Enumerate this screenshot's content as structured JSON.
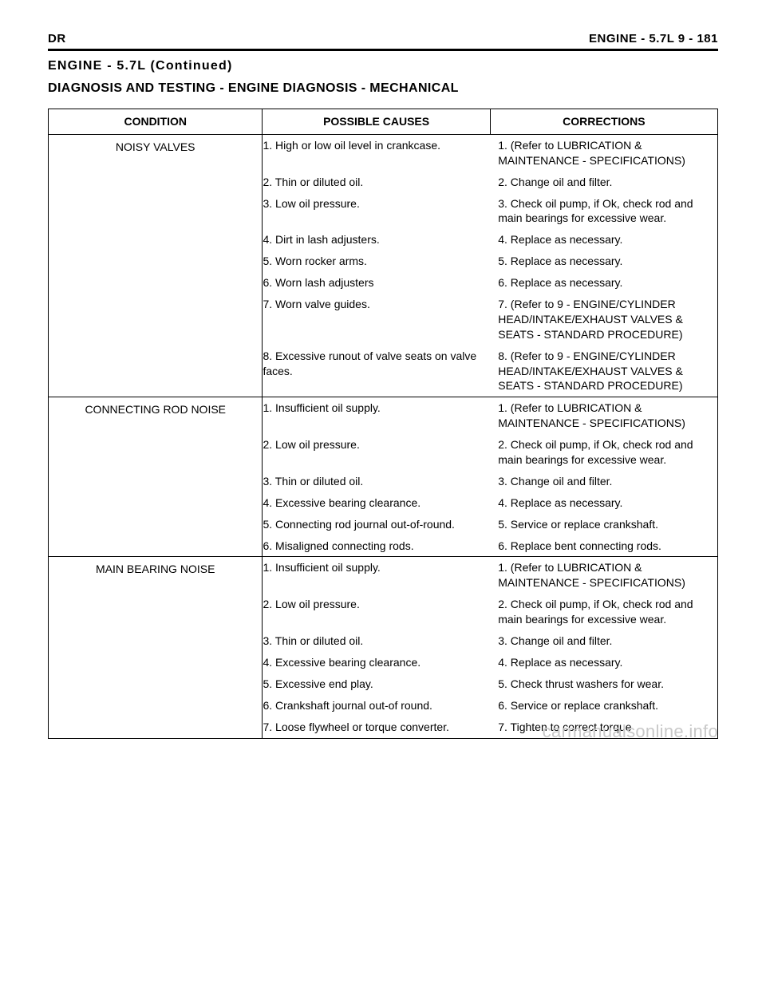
{
  "header": {
    "left": "DR",
    "right_section": "ENGINE - 5.7L",
    "right_page": "9 - 181"
  },
  "continued": "ENGINE - 5.7L (Continued)",
  "title": "DIAGNOSIS AND TESTING - ENGINE DIAGNOSIS - MECHANICAL",
  "columns": {
    "condition": "CONDITION",
    "causes": "POSSIBLE CAUSES",
    "corrections": "CORRECTIONS"
  },
  "rows": [
    {
      "condition": "NOISY VALVES",
      "pairs": [
        {
          "cause": "1. High or low oil level in crankcase.",
          "correction": "1. (Refer to LUBRICATION & MAINTENANCE - SPECIFICATIONS)"
        },
        {
          "cause": "2. Thin or diluted oil.",
          "correction": "2. Change oil and filter."
        },
        {
          "cause": "3. Low oil pressure.",
          "correction": "3. Check oil pump, if Ok, check rod and main bearings for excessive wear."
        },
        {
          "cause": "4. Dirt in lash adjusters.",
          "correction": "4. Replace as necessary."
        },
        {
          "cause": "5. Worn rocker arms.",
          "correction": "5. Replace as necessary."
        },
        {
          "cause": "6. Worn lash adjusters",
          "correction": "6. Replace as necessary."
        },
        {
          "cause": "7. Worn valve guides.",
          "correction": "7. (Refer to 9 - ENGINE/CYLINDER HEAD/INTAKE/EXHAUST VALVES & SEATS - STANDARD PROCEDURE)"
        },
        {
          "cause": "8. Excessive runout of valve seats on valve faces.",
          "correction": "8. (Refer to 9 - ENGINE/CYLINDER HEAD/INTAKE/EXHAUST VALVES & SEATS - STANDARD PROCEDURE)"
        }
      ]
    },
    {
      "condition": "CONNECTING ROD NOISE",
      "pairs": [
        {
          "cause": "1. Insufficient oil supply.",
          "correction": "1. (Refer to LUBRICATION & MAINTENANCE - SPECIFICATIONS)"
        },
        {
          "cause": "2. Low oil pressure.",
          "correction": "2. Check oil pump, if Ok, check rod and main bearings for excessive wear."
        },
        {
          "cause": "3. Thin or diluted oil.",
          "correction": "3. Change oil and filter."
        },
        {
          "cause": "4. Excessive bearing clearance.",
          "correction": "4. Replace as necessary."
        },
        {
          "cause": "5. Connecting rod journal out-of-round.",
          "correction": "5. Service or replace crankshaft."
        },
        {
          "cause": "6. Misaligned connecting rods.",
          "correction": "6. Replace bent connecting rods."
        }
      ]
    },
    {
      "condition": "MAIN BEARING NOISE",
      "pairs": [
        {
          "cause": "1. Insufficient oil supply.",
          "correction": "1. (Refer to LUBRICATION & MAINTENANCE - SPECIFICATIONS)"
        },
        {
          "cause": "2. Low oil pressure.",
          "correction": "2. Check oil pump, if Ok, check rod and main bearings for excessive wear."
        },
        {
          "cause": "3. Thin or diluted oil.",
          "correction": "3. Change oil and filter."
        },
        {
          "cause": "4. Excessive bearing clearance.",
          "correction": "4. Replace as necessary."
        },
        {
          "cause": "5. Excessive end play.",
          "correction": "5. Check thrust washers for wear."
        },
        {
          "cause": "6. Crankshaft journal out-of round.",
          "correction": "6. Service or replace crankshaft."
        },
        {
          "cause": "7. Loose flywheel or torque converter.",
          "correction": "7. Tighten to correct torque"
        }
      ]
    }
  ],
  "watermark": "carmanualsonline.info"
}
